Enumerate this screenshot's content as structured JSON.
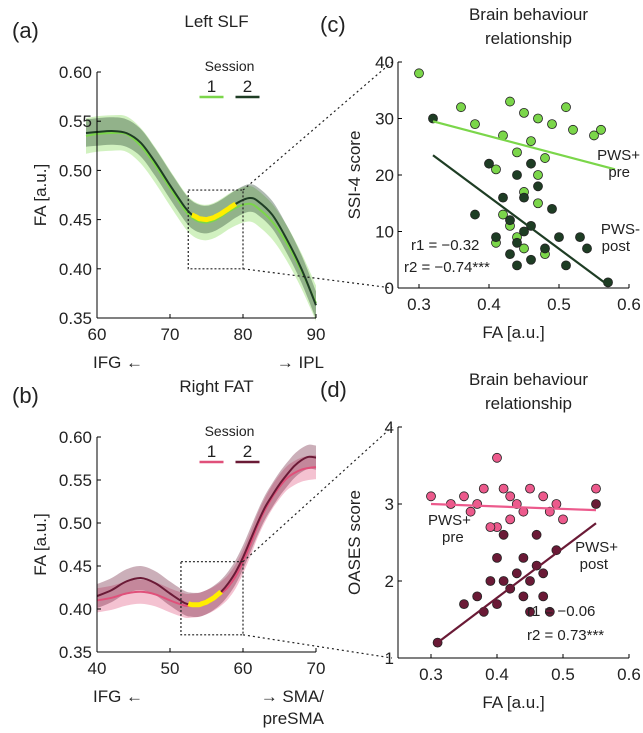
{
  "colors": {
    "s1_slf": "#7bd64a",
    "s2_slf": "#1e3d24",
    "s1_fat": "#e0507a",
    "s2_fat": "#6a1a36",
    "highlight": "#ffee00"
  },
  "chart_data": [
    {
      "id": "a",
      "type": "line",
      "panel_label": "(a)",
      "title": "Left SLF",
      "ylabel": "FA [a.u.]",
      "xlim": [
        60,
        90
      ],
      "ylim": [
        0.35,
        0.6
      ],
      "xticks": [
        "60",
        "70",
        "80",
        "90"
      ],
      "yticks": [
        "0.35",
        "0.40",
        "0.45",
        "0.50",
        "0.55",
        "0.60"
      ],
      "x_left": "IFG ←",
      "x_right": "→ IPL",
      "legend_title": "Session",
      "highlight_range": [
        73,
        79
      ],
      "box_x": [
        72.5,
        80
      ],
      "box_y": [
        0.4,
        0.48
      ],
      "series": [
        {
          "name": "1",
          "color": "#7bd64a",
          "band": 0.018,
          "x": [
            58.5,
            60,
            62,
            64,
            66,
            68,
            70,
            72,
            73,
            74,
            75,
            76,
            77,
            78,
            79,
            80,
            81,
            82,
            84,
            86,
            88,
            90
          ],
          "y": [
            0.535,
            0.537,
            0.538,
            0.537,
            0.525,
            0.505,
            0.482,
            0.46,
            0.452,
            0.448,
            0.447,
            0.449,
            0.453,
            0.458,
            0.462,
            0.465,
            0.466,
            0.462,
            0.448,
            0.426,
            0.398,
            0.365
          ]
        },
        {
          "name": "2",
          "color": "#1e3d24",
          "band": 0.014,
          "x": [
            58.5,
            60,
            62,
            64,
            66,
            68,
            70,
            72,
            73,
            74,
            75,
            76,
            77,
            78,
            79,
            80,
            81,
            82,
            84,
            86,
            88,
            90
          ],
          "y": [
            0.538,
            0.539,
            0.54,
            0.538,
            0.528,
            0.508,
            0.485,
            0.463,
            0.455,
            0.451,
            0.45,
            0.452,
            0.456,
            0.461,
            0.466,
            0.47,
            0.472,
            0.469,
            0.455,
            0.43,
            0.4,
            0.363
          ]
        }
      ]
    },
    {
      "id": "b",
      "type": "line",
      "panel_label": "(b)",
      "title": "Right FAT",
      "ylabel": "FA [a.u.]",
      "xlim": [
        40,
        70
      ],
      "ylim": [
        0.35,
        0.6
      ],
      "xticks": [
        "40",
        "50",
        "60",
        "70"
      ],
      "yticks": [
        "0.35",
        "0.40",
        "0.45",
        "0.50",
        "0.55",
        "0.60"
      ],
      "x_left": "IFG ←",
      "x_right": "→ SMA/",
      "x_right2": "preSMA",
      "legend_title": "Session",
      "highlight_range": [
        52.5,
        57
      ],
      "box_x": [
        51.5,
        60
      ],
      "box_y": [
        0.37,
        0.455
      ],
      "series": [
        {
          "name": "1",
          "color": "#e0507a",
          "band": 0.014,
          "x": [
            40,
            42,
            44,
            46,
            48,
            50,
            52,
            53,
            54,
            55,
            56,
            57,
            58,
            59,
            60,
            61,
            62,
            63,
            64,
            65,
            66,
            67,
            68,
            69,
            70
          ],
          "y": [
            0.41,
            0.413,
            0.418,
            0.42,
            0.417,
            0.41,
            0.404,
            0.404,
            0.405,
            0.408,
            0.412,
            0.418,
            0.426,
            0.438,
            0.455,
            0.475,
            0.497,
            0.515,
            0.53,
            0.542,
            0.552,
            0.558,
            0.562,
            0.564,
            0.565
          ]
        },
        {
          "name": "2",
          "color": "#6a1a36",
          "band": 0.014,
          "x": [
            40,
            42,
            44,
            46,
            48,
            50,
            52,
            53,
            54,
            55,
            56,
            57,
            58,
            59,
            60,
            61,
            62,
            63,
            64,
            65,
            66,
            67,
            68,
            69,
            70
          ],
          "y": [
            0.415,
            0.422,
            0.432,
            0.436,
            0.43,
            0.418,
            0.407,
            0.405,
            0.405,
            0.408,
            0.413,
            0.42,
            0.43,
            0.443,
            0.46,
            0.48,
            0.5,
            0.518,
            0.532,
            0.545,
            0.556,
            0.566,
            0.573,
            0.577,
            0.576
          ]
        }
      ]
    },
    {
      "id": "c",
      "type": "scatter",
      "panel_label": "(c)",
      "title": [
        "Brain behaviour",
        "relationship"
      ],
      "xlabel": "FA [a.u.]",
      "ylabel": "SSI-4 score",
      "xlim": [
        0.27,
        0.6
      ],
      "ylim": [
        0,
        40
      ],
      "xticks": [
        "0.3",
        "0.4",
        "0.5",
        "0.6"
      ],
      "yticks": [
        "0",
        "10",
        "20",
        "30",
        "40"
      ],
      "stats": [
        {
          "text": "r1 = −0.32",
          "color": "#5aaa30"
        },
        {
          "text": "r2 = −0.74***",
          "color": "#1e3d24"
        }
      ],
      "series": [
        {
          "name": "PWS+",
          "sub": "pre",
          "color": "#7bd64a",
          "label_color": "#66cc33",
          "fit": [
            [
              0.32,
              29.5
            ],
            [
              0.58,
              21.0
            ]
          ],
          "points": [
            [
              0.3,
              38
            ],
            [
              0.36,
              32
            ],
            [
              0.43,
              33
            ],
            [
              0.45,
              31
            ],
            [
              0.47,
              30
            ],
            [
              0.51,
              32
            ],
            [
              0.56,
              28
            ],
            [
              0.38,
              29
            ],
            [
              0.49,
              29
            ],
            [
              0.52,
              28
            ],
            [
              0.55,
              27
            ],
            [
              0.42,
              27
            ],
            [
              0.46,
              26
            ],
            [
              0.44,
              24
            ],
            [
              0.48,
              23
            ],
            [
              0.41,
              21
            ],
            [
              0.47,
              20
            ],
            [
              0.45,
              17
            ],
            [
              0.47,
              15
            ],
            [
              0.42,
              13
            ],
            [
              0.43,
              11
            ],
            [
              0.44,
              9
            ],
            [
              0.41,
              8
            ],
            [
              0.45,
              7
            ],
            [
              0.48,
              6
            ]
          ]
        },
        {
          "name": "PWS-",
          "sub": "post",
          "color": "#1e3d24",
          "label_color": "#1e3d24",
          "fit": [
            [
              0.32,
              23.5
            ],
            [
              0.57,
              0.5
            ]
          ],
          "points": [
            [
              0.32,
              30
            ],
            [
              0.4,
              22
            ],
            [
              0.46,
              22
            ],
            [
              0.44,
              20
            ],
            [
              0.47,
              18
            ],
            [
              0.45,
              16
            ],
            [
              0.42,
              16
            ],
            [
              0.49,
              14
            ],
            [
              0.38,
              13
            ],
            [
              0.43,
              12
            ],
            [
              0.46,
              11
            ],
            [
              0.45,
              10
            ],
            [
              0.41,
              9
            ],
            [
              0.5,
              9
            ],
            [
              0.44,
              8
            ],
            [
              0.48,
              7
            ],
            [
              0.53,
              9
            ],
            [
              0.54,
              7
            ],
            [
              0.43,
              6
            ],
            [
              0.46,
              5
            ],
            [
              0.51,
              4
            ],
            [
              0.44,
              4
            ],
            [
              0.57,
              1
            ]
          ]
        }
      ]
    },
    {
      "id": "d",
      "type": "scatter",
      "panel_label": "(d)",
      "title": [
        "Brain behaviour",
        "relationship"
      ],
      "xlabel": "FA [a.u.]",
      "ylabel": "OASES score",
      "xlim": [
        0.25,
        0.6
      ],
      "ylim": [
        1,
        4
      ],
      "xticks": [
        "0.3",
        "0.4",
        "0.5",
        "0.6"
      ],
      "yticks": [
        "1",
        "2",
        "3",
        "4"
      ],
      "stats": [
        {
          "text": "r1 = −0.06",
          "color": "#e0507a"
        },
        {
          "text": "r2 = 0.73***",
          "color": "#4a1226"
        }
      ],
      "series": [
        {
          "name": "PWS+",
          "sub": "pre",
          "color": "#ec5a8c",
          "label_color": "#e0507a",
          "fit": [
            [
              0.3,
              3.0
            ],
            [
              0.55,
              2.92
            ]
          ],
          "points": [
            [
              0.3,
              3.1
            ],
            [
              0.33,
              3.0
            ],
            [
              0.35,
              3.1
            ],
            [
              0.37,
              3.0
            ],
            [
              0.38,
              3.2
            ],
            [
              0.4,
              3.6
            ],
            [
              0.41,
              3.2
            ],
            [
              0.42,
              3.1
            ],
            [
              0.43,
              3.0
            ],
            [
              0.45,
              3.2
            ],
            [
              0.47,
              3.1
            ],
            [
              0.48,
              2.9
            ],
            [
              0.49,
              3.0
            ],
            [
              0.5,
              2.8
            ],
            [
              0.55,
              3.2
            ],
            [
              0.4,
              2.7
            ],
            [
              0.42,
              2.8
            ],
            [
              0.36,
              2.9
            ],
            [
              0.39,
              2.7
            ],
            [
              0.44,
              2.9
            ]
          ]
        },
        {
          "name": "PWS+",
          "sub": "post",
          "color": "#6a1a36",
          "label_color": "#6a1a36",
          "fit": [
            [
              0.31,
              1.2
            ],
            [
              0.55,
              2.75
            ]
          ],
          "points": [
            [
              0.31,
              1.2
            ],
            [
              0.35,
              1.7
            ],
            [
              0.37,
              1.8
            ],
            [
              0.38,
              1.6
            ],
            [
              0.39,
              2.0
            ],
            [
              0.4,
              2.3
            ],
            [
              0.41,
              2.0
            ],
            [
              0.42,
              1.9
            ],
            [
              0.4,
              1.7
            ],
            [
              0.43,
              2.1
            ],
            [
              0.44,
              1.8
            ],
            [
              0.45,
              2.0
            ],
            [
              0.45,
              1.6
            ],
            [
              0.46,
              2.2
            ],
            [
              0.47,
              1.8
            ],
            [
              0.48,
              1.6
            ],
            [
              0.49,
              2.4
            ],
            [
              0.46,
              2.6
            ],
            [
              0.41,
              2.6
            ],
            [
              0.55,
              3.0
            ],
            [
              0.44,
              2.3
            ],
            [
              0.47,
              2.1
            ]
          ]
        }
      ]
    }
  ]
}
